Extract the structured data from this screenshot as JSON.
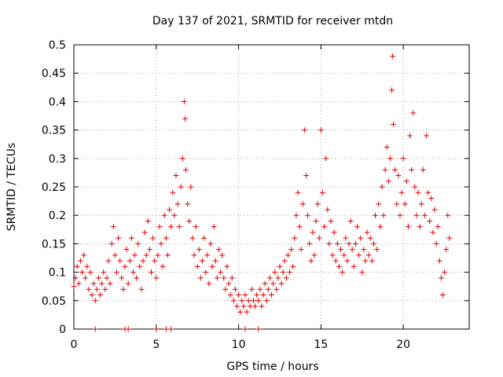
{
  "chart_data": {
    "type": "scatter",
    "title": "Day 137 of 2021, SRMTID for receiver mtdn",
    "xlabel": "GPS time / hours",
    "ylabel": "SRMTID / TECUs",
    "xlim": [
      0,
      24
    ],
    "ylim": [
      0,
      0.5
    ],
    "xticks": [
      0,
      5,
      10,
      15,
      20
    ],
    "xtick_labels": [
      "0",
      "5",
      "10",
      "15",
      "20"
    ],
    "yticks": [
      0,
      0.05,
      0.1,
      0.15,
      0.2,
      0.25,
      0.3,
      0.35,
      0.4,
      0.45,
      0.5
    ],
    "ytick_labels": [
      "0",
      "0.05",
      "0.1",
      "0.15",
      "0.2",
      "0.25",
      "0.3",
      "0.35",
      "0.4",
      "0.45",
      "0.5"
    ],
    "grid": true,
    "marker": "+",
    "marker_color": "#e00000",
    "axis_color": "#000000",
    "grid_color": "#a0a0a0",
    "series": [
      {
        "name": "SRMTID",
        "color": "#e00000",
        "points": [
          [
            0.0,
            0.075
          ],
          [
            0.1,
            0.09
          ],
          [
            0.2,
            0.11
          ],
          [
            0.3,
            0.08
          ],
          [
            0.4,
            0.12
          ],
          [
            0.5,
            0.1
          ],
          [
            0.6,
            0.13
          ],
          [
            0.7,
            0.09
          ],
          [
            0.8,
            0.11
          ],
          [
            0.9,
            0.07
          ],
          [
            1.0,
            0.1
          ],
          [
            1.1,
            0.06
          ],
          [
            1.2,
            0.08
          ],
          [
            1.3,
            0.05
          ],
          [
            1.4,
            0.07
          ],
          [
            1.5,
            0.09
          ],
          [
            1.6,
            0.06
          ],
          [
            1.7,
            0.08
          ],
          [
            1.8,
            0.1
          ],
          [
            1.9,
            0.07
          ],
          [
            2.0,
            0.09
          ],
          [
            2.1,
            0.12
          ],
          [
            2.2,
            0.08
          ],
          [
            2.3,
            0.15
          ],
          [
            2.4,
            0.18
          ],
          [
            2.5,
            0.13
          ],
          [
            2.6,
            0.1
          ],
          [
            2.7,
            0.16
          ],
          [
            2.8,
            0.12
          ],
          [
            2.9,
            0.09
          ],
          [
            3.0,
            0.07
          ],
          [
            3.1,
            0.11
          ],
          [
            3.2,
            0.14
          ],
          [
            3.3,
            0.08
          ],
          [
            3.4,
            0.12
          ],
          [
            3.5,
            0.16
          ],
          [
            3.6,
            0.1
          ],
          [
            3.7,
            0.13
          ],
          [
            3.8,
            0.09
          ],
          [
            3.9,
            0.15
          ],
          [
            4.0,
            0.11
          ],
          [
            4.1,
            0.07
          ],
          [
            4.2,
            0.12
          ],
          [
            4.3,
            0.17
          ],
          [
            4.4,
            0.13
          ],
          [
            4.5,
            0.19
          ],
          [
            4.6,
            0.14
          ],
          [
            4.7,
            0.1
          ],
          [
            4.8,
            0.16
          ],
          [
            4.9,
            0.12
          ],
          [
            5.0,
            0.09
          ],
          [
            5.1,
            0.13
          ],
          [
            5.2,
            0.18
          ],
          [
            5.3,
            0.15
          ],
          [
            5.4,
            0.11
          ],
          [
            5.5,
            0.2
          ],
          [
            5.6,
            0.16
          ],
          [
            5.7,
            0.13
          ],
          [
            5.8,
            0.21
          ],
          [
            5.9,
            0.18
          ],
          [
            6.0,
            0.24
          ],
          [
            6.1,
            0.2
          ],
          [
            6.2,
            0.27
          ],
          [
            6.3,
            0.22
          ],
          [
            6.4,
            0.18
          ],
          [
            6.5,
            0.25
          ],
          [
            6.6,
            0.3
          ],
          [
            6.7,
            0.4
          ],
          [
            6.75,
            0.37
          ],
          [
            6.8,
            0.28
          ],
          [
            6.9,
            0.22
          ],
          [
            7.0,
            0.19
          ],
          [
            7.1,
            0.25
          ],
          [
            7.2,
            0.16
          ],
          [
            7.3,
            0.13
          ],
          [
            7.4,
            0.18
          ],
          [
            7.5,
            0.11
          ],
          [
            7.6,
            0.14
          ],
          [
            7.7,
            0.09
          ],
          [
            7.8,
            0.12
          ],
          [
            7.9,
            0.16
          ],
          [
            8.0,
            0.1
          ],
          [
            8.1,
            0.13
          ],
          [
            8.2,
            0.08
          ],
          [
            8.3,
            0.15
          ],
          [
            8.4,
            0.11
          ],
          [
            8.5,
            0.18
          ],
          [
            8.6,
            0.12
          ],
          [
            8.7,
            0.09
          ],
          [
            8.8,
            0.14
          ],
          [
            8.9,
            0.1
          ],
          [
            9.0,
            0.13
          ],
          [
            9.1,
            0.09
          ],
          [
            9.2,
            0.07
          ],
          [
            9.3,
            0.11
          ],
          [
            9.4,
            0.08
          ],
          [
            9.5,
            0.06
          ],
          [
            9.6,
            0.09
          ],
          [
            9.7,
            0.05
          ],
          [
            9.8,
            0.07
          ],
          [
            9.9,
            0.04
          ],
          [
            10.0,
            0.06
          ],
          [
            10.1,
            0.03
          ],
          [
            10.2,
            0.05
          ],
          [
            10.3,
            0.04
          ],
          [
            10.4,
            0.06
          ],
          [
            10.5,
            0.03
          ],
          [
            10.6,
            0.05
          ],
          [
            10.7,
            0.04
          ],
          [
            10.8,
            0.07
          ],
          [
            10.9,
            0.05
          ],
          [
            11.0,
            0.04
          ],
          [
            11.1,
            0.06
          ],
          [
            11.2,
            0.05
          ],
          [
            11.3,
            0.07
          ],
          [
            11.4,
            0.04
          ],
          [
            11.5,
            0.06
          ],
          [
            11.6,
            0.08
          ],
          [
            11.7,
            0.05
          ],
          [
            11.8,
            0.07
          ],
          [
            11.9,
            0.09
          ],
          [
            12.0,
            0.06
          ],
          [
            12.1,
            0.08
          ],
          [
            12.2,
            0.1
          ],
          [
            12.3,
            0.07
          ],
          [
            12.4,
            0.09
          ],
          [
            12.5,
            0.11
          ],
          [
            12.6,
            0.08
          ],
          [
            12.7,
            0.1
          ],
          [
            12.8,
            0.12
          ],
          [
            12.9,
            0.09
          ],
          [
            13.0,
            0.13
          ],
          [
            13.1,
            0.1
          ],
          [
            13.2,
            0.14
          ],
          [
            13.3,
            0.11
          ],
          [
            13.4,
            0.16
          ],
          [
            13.5,
            0.2
          ],
          [
            13.6,
            0.24
          ],
          [
            13.7,
            0.18
          ],
          [
            13.8,
            0.14
          ],
          [
            13.9,
            0.22
          ],
          [
            14.0,
            0.35
          ],
          [
            14.1,
            0.27
          ],
          [
            14.2,
            0.2
          ],
          [
            14.3,
            0.15
          ],
          [
            14.4,
            0.12
          ],
          [
            14.5,
            0.17
          ],
          [
            14.6,
            0.13
          ],
          [
            14.7,
            0.19
          ],
          [
            14.8,
            0.22
          ],
          [
            14.9,
            0.16
          ],
          [
            15.0,
            0.35
          ],
          [
            15.1,
            0.24
          ],
          [
            15.2,
            0.18
          ],
          [
            15.3,
            0.3
          ],
          [
            15.4,
            0.21
          ],
          [
            15.5,
            0.15
          ],
          [
            15.6,
            0.19
          ],
          [
            15.7,
            0.13
          ],
          [
            15.8,
            0.17
          ],
          [
            15.9,
            0.12
          ],
          [
            16.0,
            0.15
          ],
          [
            16.1,
            0.11
          ],
          [
            16.2,
            0.14
          ],
          [
            16.3,
            0.1
          ],
          [
            16.4,
            0.13
          ],
          [
            16.5,
            0.16
          ],
          [
            16.6,
            0.12
          ],
          [
            16.7,
            0.15
          ],
          [
            16.8,
            0.19
          ],
          [
            16.9,
            0.14
          ],
          [
            17.0,
            0.11
          ],
          [
            17.1,
            0.15
          ],
          [
            17.2,
            0.18
          ],
          [
            17.3,
            0.13
          ],
          [
            17.4,
            0.16
          ],
          [
            17.5,
            0.1
          ],
          [
            17.6,
            0.14
          ],
          [
            17.7,
            0.12
          ],
          [
            17.8,
            0.17
          ],
          [
            17.9,
            0.13
          ],
          [
            18.0,
            0.16
          ],
          [
            18.1,
            0.12
          ],
          [
            18.2,
            0.15
          ],
          [
            18.3,
            0.2
          ],
          [
            18.4,
            0.14
          ],
          [
            18.5,
            0.22
          ],
          [
            18.6,
            0.18
          ],
          [
            18.7,
            0.25
          ],
          [
            18.8,
            0.2
          ],
          [
            18.9,
            0.28
          ],
          [
            19.0,
            0.32
          ],
          [
            19.1,
            0.26
          ],
          [
            19.2,
            0.3
          ],
          [
            19.3,
            0.42
          ],
          [
            19.35,
            0.48
          ],
          [
            19.4,
            0.36
          ],
          [
            19.5,
            0.28
          ],
          [
            19.6,
            0.22
          ],
          [
            19.7,
            0.27
          ],
          [
            19.8,
            0.2
          ],
          [
            19.9,
            0.24
          ],
          [
            20.0,
            0.3
          ],
          [
            20.1,
            0.22
          ],
          [
            20.2,
            0.26
          ],
          [
            20.3,
            0.18
          ],
          [
            20.4,
            0.34
          ],
          [
            20.5,
            0.28
          ],
          [
            20.6,
            0.38
          ],
          [
            20.7,
            0.25
          ],
          [
            20.8,
            0.2
          ],
          [
            20.9,
            0.24
          ],
          [
            21.0,
            0.18
          ],
          [
            21.1,
            0.22
          ],
          [
            21.2,
            0.28
          ],
          [
            21.3,
            0.2
          ],
          [
            21.4,
            0.34
          ],
          [
            21.5,
            0.24
          ],
          [
            21.6,
            0.19
          ],
          [
            21.7,
            0.23
          ],
          [
            21.8,
            0.17
          ],
          [
            21.9,
            0.21
          ],
          [
            22.0,
            0.15
          ],
          [
            22.1,
            0.18
          ],
          [
            22.2,
            0.12
          ],
          [
            22.3,
            0.09
          ],
          [
            22.4,
            0.06
          ],
          [
            22.5,
            0.1
          ],
          [
            22.6,
            0.14
          ],
          [
            22.7,
            0.2
          ],
          [
            22.8,
            0.16
          ]
        ]
      },
      {
        "name": "SRMTID (zero)",
        "color": "#e00000",
        "points": [
          [
            1.3,
            0
          ],
          [
            3.1,
            0
          ],
          [
            3.3,
            0
          ],
          [
            5.0,
            0
          ],
          [
            5.6,
            0
          ],
          [
            5.9,
            0
          ],
          [
            10.4,
            0
          ],
          [
            11.2,
            0
          ]
        ]
      }
    ]
  }
}
